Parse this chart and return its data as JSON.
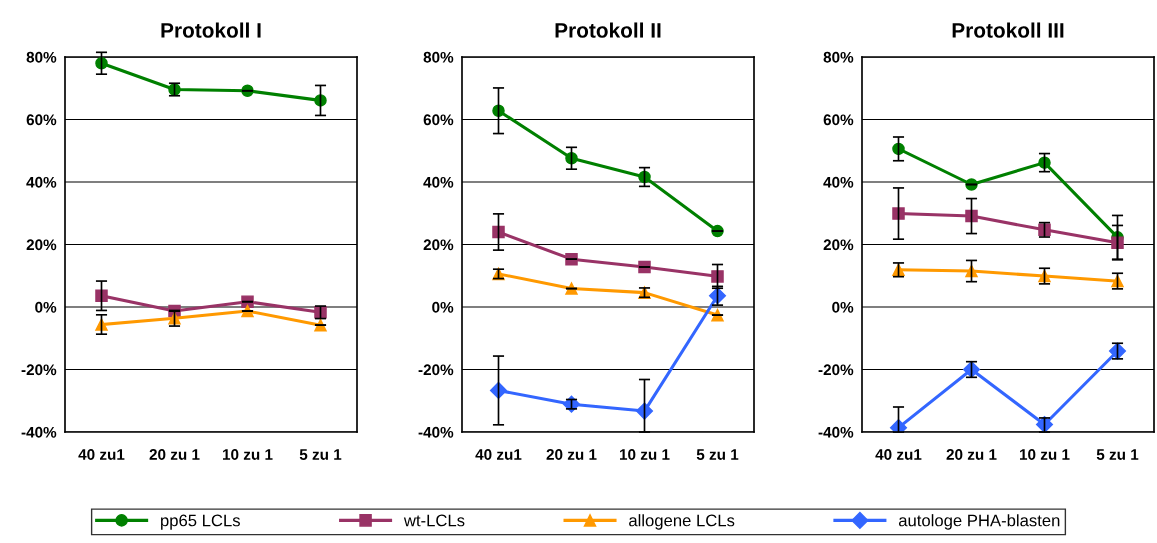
{
  "chart_data": [
    {
      "type": "line",
      "title": "Protokoll I",
      "categories": [
        "40 zu1",
        "20 zu 1",
        "10 zu 1",
        "5 zu 1"
      ],
      "ylim": [
        -40,
        80
      ],
      "yticks": [
        {
          "value": -40,
          "label": "-40%"
        },
        {
          "value": -20,
          "label": "-20%"
        },
        {
          "value": 0,
          "label": "0%"
        },
        {
          "value": 20,
          "label": "20%"
        },
        {
          "value": 40,
          "label": "40%"
        },
        {
          "value": 60,
          "label": "60%"
        },
        {
          "value": 80,
          "label": "80%"
        }
      ],
      "grid": "y",
      "legend": "bottom",
      "series": [
        {
          "name": "pp65 LCLs",
          "color": "#008000",
          "marker": "circle",
          "values": [
            78.0,
            69.6,
            69.2,
            66.1
          ],
          "errors": [
            3.5,
            2,
            null,
            4.8
          ]
        },
        {
          "name": "wt-LCLs",
          "color": "#993366",
          "marker": "square",
          "values": [
            3.6,
            -1.3,
            1.7,
            -1.7
          ],
          "errors": [
            4.7,
            null,
            null,
            2
          ]
        },
        {
          "name": "allogene LCLs",
          "color": "#ff9900",
          "marker": "triangle",
          "values": [
            -5.6,
            -3.6,
            -1.3,
            -5.8
          ],
          "errors": [
            3.1,
            2.5,
            null,
            null
          ]
        }
      ]
    },
    {
      "type": "line",
      "title": "Protokoll II",
      "categories": [
        "40 zu1",
        "20 zu 1",
        "10 zu 1",
        "5 zu 1"
      ],
      "ylim": [
        -40,
        80
      ],
      "yticks": [
        {
          "value": -40,
          "label": "-40%"
        },
        {
          "value": -20,
          "label": "-20%"
        },
        {
          "value": 0,
          "label": "0%"
        },
        {
          "value": 20,
          "label": "20%"
        },
        {
          "value": 40,
          "label": "40%"
        },
        {
          "value": 60,
          "label": "60%"
        },
        {
          "value": 80,
          "label": "80%"
        }
      ],
      "grid": "y",
      "legend": "bottom",
      "series": [
        {
          "name": "pp65 LCLs",
          "color": "#008000",
          "marker": "circle",
          "values": [
            62.8,
            47.6,
            41.6,
            24.3
          ],
          "errors": [
            7.3,
            3.5,
            3,
            null
          ]
        },
        {
          "name": "wt-LCLs",
          "color": "#993366",
          "marker": "square",
          "values": [
            24.0,
            15.3,
            12.8,
            9.8
          ],
          "errors": [
            5.8,
            null,
            null,
            3.8
          ]
        },
        {
          "name": "allogene LCLs",
          "color": "#ff9900",
          "marker": "triangle",
          "values": [
            10.6,
            5.9,
            4.6,
            -2.6
          ],
          "errors": [
            1.5,
            null,
            1.5,
            null
          ]
        },
        {
          "name": "autologe PHA-blasten",
          "color": "#3366ff",
          "marker": "diamond",
          "values": [
            -26.7,
            -31.1,
            -33.3,
            3.6
          ],
          "errors": [
            11,
            1.5,
            [
              -40,
              -23.2
            ],
            3
          ]
        }
      ]
    },
    {
      "type": "line",
      "title": "Protokoll III",
      "categories": [
        "40 zu1",
        "20 zu 1",
        "10 zu 1",
        "5 zu 1"
      ],
      "ylim": [
        -40,
        80
      ],
      "yticks": [
        {
          "value": -40,
          "label": "-40%"
        },
        {
          "value": -20,
          "label": "-20%"
        },
        {
          "value": 0,
          "label": "0%"
        },
        {
          "value": 20,
          "label": "20%"
        },
        {
          "value": 40,
          "label": "40%"
        },
        {
          "value": 60,
          "label": "60%"
        },
        {
          "value": 80,
          "label": "80%"
        }
      ],
      "grid": "y",
      "legend": "bottom",
      "series": [
        {
          "name": "pp65 LCLs",
          "color": "#008000",
          "marker": "circle",
          "values": [
            50.6,
            39.2,
            46.2,
            22.3
          ],
          "errors": [
            3.8,
            null,
            2.9,
            7
          ]
        },
        {
          "name": "wt-LCLs",
          "color": "#993366",
          "marker": "square",
          "values": [
            29.9,
            29.1,
            24.7,
            20.6
          ],
          "errors": [
            8.2,
            5.6,
            2.3,
            5.5
          ]
        },
        {
          "name": "allogene LCLs",
          "color": "#ff9900",
          "marker": "triangle",
          "values": [
            11.9,
            11.5,
            9.9,
            8.3
          ],
          "errors": [
            2.2,
            3.4,
            2.5,
            2.5
          ]
        },
        {
          "name": "autologe PHA-blasten",
          "color": "#3366ff",
          "marker": "diamond",
          "values": [
            -38.6,
            -20.0,
            -37.6,
            -14.1
          ],
          "errors": [
            [
              -40,
              -32
            ],
            2.5,
            [
              -40,
              -35.5
            ],
            2.5
          ]
        }
      ]
    }
  ]
}
